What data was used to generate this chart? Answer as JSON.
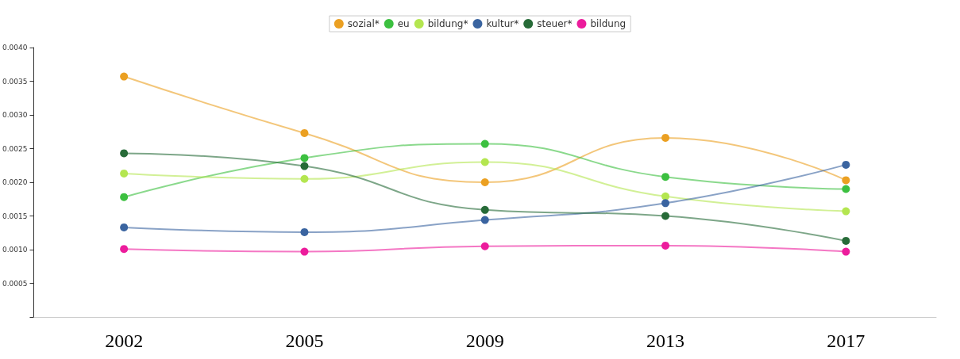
{
  "chart_data": {
    "type": "line",
    "categories": [
      "2002",
      "2005",
      "2009",
      "2013",
      "2017"
    ],
    "series": [
      {
        "name": "sozial*",
        "color": "#eba022",
        "values": [
          0.00357,
          0.00273,
          0.002,
          0.00266,
          0.00203
        ]
      },
      {
        "name": "eu",
        "color": "#3cc040",
        "values": [
          0.00178,
          0.00236,
          0.00257,
          0.00208,
          0.0019
        ]
      },
      {
        "name": "bildung*",
        "color": "#b4e650",
        "values": [
          0.00213,
          0.00205,
          0.0023,
          0.00179,
          0.00157
        ]
      },
      {
        "name": "kultur*",
        "color": "#3a64a0",
        "values": [
          0.00133,
          0.00126,
          0.00144,
          0.00169,
          0.00226
        ]
      },
      {
        "name": "steuer*",
        "color": "#276b38",
        "values": [
          0.00243,
          0.00224,
          0.00159,
          0.0015,
          0.00113
        ]
      },
      {
        "name": "bildung",
        "color": "#ec1c9c",
        "values": [
          0.00101,
          0.00097,
          0.00105,
          0.00106,
          0.00097
        ]
      }
    ],
    "ylim": [
      0,
      0.004
    ],
    "yticks": [
      {
        "value": 0,
        "label": null
      },
      0.0005,
      {
        "value": 0.001,
        "label": "0.0010"
      },
      0.0015,
      {
        "value": 0.002,
        "label": "0.0020"
      },
      0.0025,
      {
        "value": 0.003,
        "label": "0.0030"
      },
      0.0035,
      {
        "value": 0.004,
        "label": "0.0040"
      }
    ],
    "grid": false,
    "legend": "top",
    "marker": "circle",
    "line_style": "solid"
  }
}
